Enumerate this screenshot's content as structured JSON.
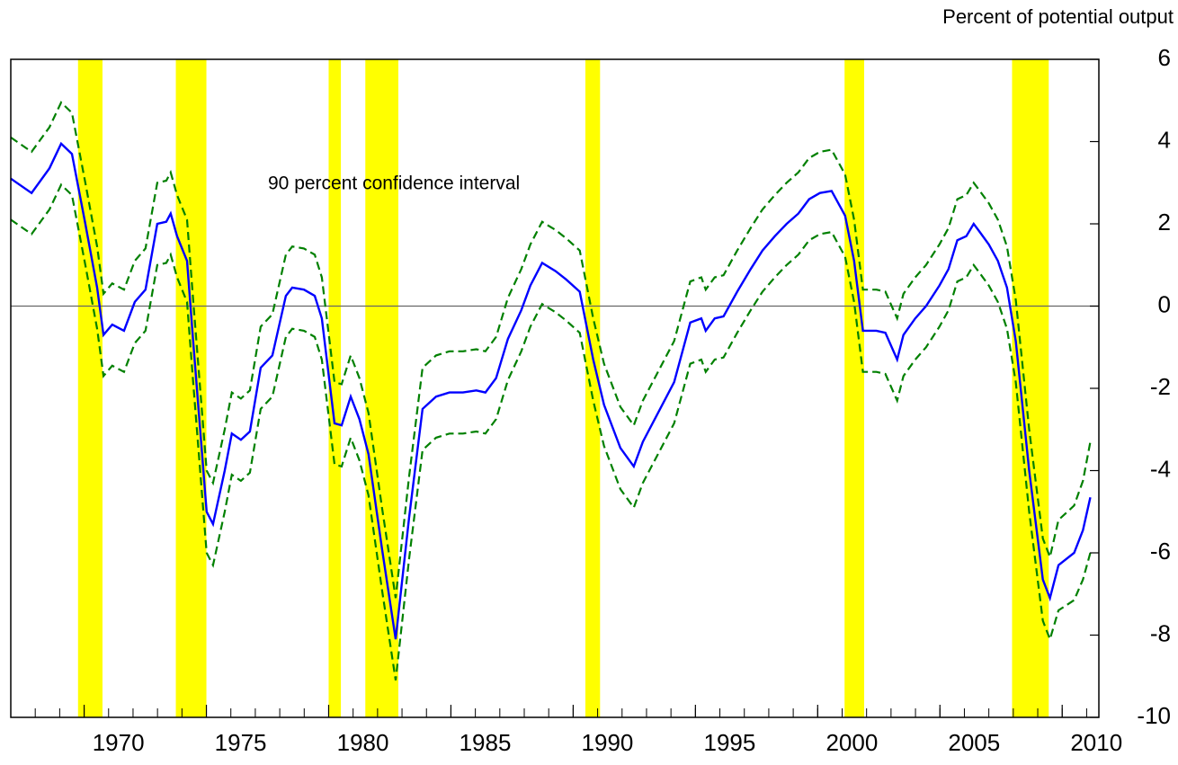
{
  "chart_data": {
    "type": "line",
    "y_label": "Percent of potential output",
    "annotation": "90 percent confidence interval",
    "x": [
      1967.0,
      1967.85,
      1968.58,
      1969.06,
      1969.5,
      1970.05,
      1970.53,
      1970.79,
      1971.15,
      1971.63,
      1972.07,
      1972.51,
      1972.99,
      1973.36,
      1973.54,
      1973.8,
      1974.21,
      1974.46,
      1975.01,
      1975.27,
      1975.75,
      1976.04,
      1976.41,
      1976.78,
      1977.22,
      1977.7,
      1978.25,
      1978.51,
      1978.99,
      1979.43,
      1979.72,
      1980.24,
      1980.53,
      1980.9,
      1981.26,
      1981.63,
      1982.18,
      1982.74,
      1983.29,
      1983.84,
      1984.39,
      1984.94,
      1985.49,
      1986.04,
      1986.41,
      1986.85,
      1987.33,
      1987.88,
      1988.25,
      1988.73,
      1989.28,
      1989.71,
      1990.27,
      1990.82,
      1991.26,
      1991.93,
      1992.48,
      1992.85,
      1993.47,
      1994.13,
      1994.79,
      1995.24,
      1995.42,
      1995.79,
      1996.15,
      1996.71,
      1997.26,
      1997.74,
      1998.25,
      1998.73,
      1999.21,
      1999.65,
      2000.09,
      2000.57,
      2001.12,
      2001.49,
      2001.85,
      2002.4,
      2002.77,
      2003.25,
      2003.51,
      2003.99,
      2004.43,
      2004.98,
      2005.35,
      2005.71,
      2006.08,
      2006.38,
      2006.63,
      2007.0,
      2007.37,
      2007.74,
      2008.1,
      2008.65,
      2009.21,
      2009.5,
      2009.85,
      2010.49,
      2010.85,
      2011.15
    ],
    "series": [
      {
        "name": "upper",
        "color": "#008000",
        "dashed": true,
        "values": [
          4.1,
          3.75,
          4.35,
          4.95,
          4.7,
          3.0,
          1.45,
          0.3,
          0.55,
          0.4,
          1.1,
          1.4,
          3.0,
          3.05,
          3.25,
          2.7,
          2.1,
          0.15,
          -4.0,
          -4.3,
          -3.0,
          -2.1,
          -2.25,
          -2.05,
          -0.5,
          -0.2,
          1.25,
          1.45,
          1.4,
          1.25,
          0.7,
          -1.85,
          -1.9,
          -1.2,
          -1.75,
          -2.6,
          -4.9,
          -7.1,
          -4.15,
          -1.5,
          -1.2,
          -1.1,
          -1.1,
          -1.05,
          -1.1,
          -0.75,
          0.2,
          0.9,
          1.5,
          2.05,
          1.85,
          1.65,
          1.35,
          -0.3,
          -1.4,
          -2.45,
          -2.9,
          -2.3,
          -1.6,
          -0.85,
          0.6,
          0.7,
          0.4,
          0.7,
          0.75,
          1.35,
          1.9,
          2.35,
          2.7,
          3.0,
          3.25,
          3.6,
          3.75,
          3.8,
          3.2,
          2.1,
          0.4,
          0.4,
          0.35,
          -0.3,
          0.3,
          0.7,
          1.0,
          1.5,
          1.9,
          2.6,
          2.7,
          3.0,
          2.8,
          2.5,
          2.1,
          1.45,
          0.15,
          -3.0,
          -5.65,
          -6.1,
          -5.2,
          -4.85,
          -4.25,
          -3.3
        ]
      },
      {
        "name": "estimate",
        "color": "#0000ff",
        "dashed": false,
        "values": [
          3.1,
          2.75,
          3.35,
          3.95,
          3.7,
          2.0,
          0.45,
          -0.7,
          -0.45,
          -0.6,
          0.1,
          0.4,
          2.0,
          2.05,
          2.25,
          1.7,
          1.1,
          -0.85,
          -5.0,
          -5.3,
          -4.0,
          -3.1,
          -3.25,
          -3.05,
          -1.5,
          -1.2,
          0.25,
          0.45,
          0.4,
          0.25,
          -0.3,
          -2.85,
          -2.9,
          -2.2,
          -2.75,
          -3.6,
          -5.9,
          -8.1,
          -5.15,
          -2.5,
          -2.2,
          -2.1,
          -2.1,
          -2.05,
          -2.1,
          -1.75,
          -0.8,
          -0.1,
          0.5,
          1.05,
          0.85,
          0.65,
          0.35,
          -1.3,
          -2.4,
          -3.45,
          -3.9,
          -3.3,
          -2.6,
          -1.85,
          -0.4,
          -0.3,
          -0.6,
          -0.3,
          -0.25,
          0.35,
          0.9,
          1.35,
          1.7,
          2.0,
          2.25,
          2.6,
          2.75,
          2.8,
          2.2,
          1.1,
          -0.6,
          -0.6,
          -0.65,
          -1.3,
          -0.7,
          -0.3,
          0.0,
          0.5,
          0.9,
          1.6,
          1.7,
          2.0,
          1.8,
          1.5,
          1.1,
          0.45,
          -0.85,
          -4.0,
          -6.65,
          -7.1,
          -6.3,
          -6.0,
          -5.45,
          -4.65
        ]
      },
      {
        "name": "lower",
        "color": "#008000",
        "dashed": true,
        "values": [
          2.1,
          1.75,
          2.35,
          2.95,
          2.7,
          1.0,
          -0.55,
          -1.7,
          -1.45,
          -1.6,
          -0.9,
          -0.6,
          1.0,
          1.05,
          1.25,
          0.7,
          0.1,
          -1.85,
          -6.0,
          -6.3,
          -5.0,
          -4.1,
          -4.25,
          -4.05,
          -2.5,
          -2.2,
          -0.75,
          -0.55,
          -0.6,
          -0.75,
          -1.3,
          -3.85,
          -3.9,
          -3.2,
          -3.75,
          -4.6,
          -6.9,
          -9.1,
          -6.15,
          -3.5,
          -3.2,
          -3.1,
          -3.1,
          -3.05,
          -3.1,
          -2.75,
          -1.8,
          -1.1,
          -0.5,
          0.05,
          -0.15,
          -0.35,
          -0.65,
          -2.3,
          -3.4,
          -4.45,
          -4.9,
          -4.3,
          -3.6,
          -2.85,
          -1.4,
          -1.3,
          -1.6,
          -1.3,
          -1.25,
          -0.65,
          -0.1,
          0.35,
          0.7,
          1.0,
          1.25,
          1.6,
          1.75,
          1.8,
          1.2,
          0.1,
          -1.6,
          -1.6,
          -1.65,
          -2.3,
          -1.7,
          -1.3,
          -1.0,
          -0.5,
          -0.1,
          0.6,
          0.7,
          1.0,
          0.8,
          0.5,
          0.1,
          -0.55,
          -1.85,
          -5.0,
          -7.65,
          -8.1,
          -7.4,
          -7.15,
          -6.65,
          -6.0
        ]
      }
    ],
    "recessions": [
      [
        1969.75,
        1970.75
      ],
      [
        1973.75,
        1975.0
      ],
      [
        1980.0,
        1980.5
      ],
      [
        1981.5,
        1982.85
      ],
      [
        1990.5,
        1991.1
      ],
      [
        2001.1,
        2001.9
      ],
      [
        2007.95,
        2009.45
      ]
    ],
    "recession_color": "#ffff00",
    "zero_line": true,
    "xlim": [
      1967,
      2011.5
    ],
    "ylim": [
      -10,
      6
    ],
    "xticks": [
      1970,
      1975,
      1980,
      1985,
      1990,
      1995,
      2000,
      2005,
      2010
    ],
    "yticks": [
      -10,
      -8,
      -6,
      -4,
      -2,
      0,
      2,
      4,
      6
    ]
  }
}
